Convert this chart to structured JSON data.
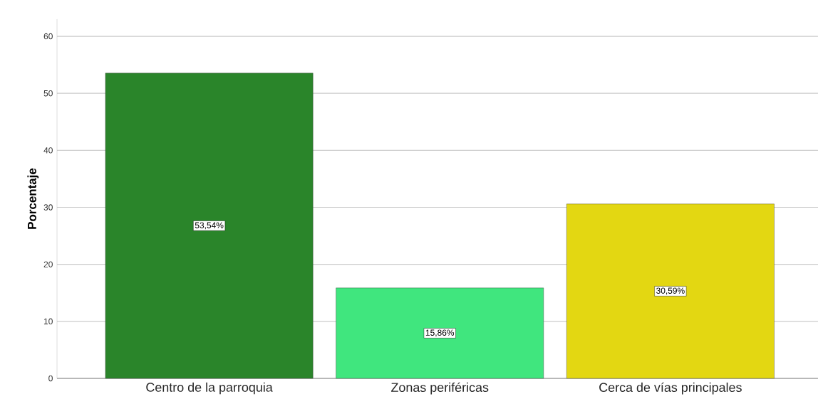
{
  "chart_data": {
    "type": "bar",
    "ylabel": "Porcentaje",
    "categories": [
      "Centro de la parroquia",
      "Zonas periféricas",
      "Cerca de vías principales"
    ],
    "values": [
      53.54,
      15.86,
      30.59
    ],
    "colors": [
      "#2a852a",
      "#40e67e",
      "#e3d712"
    ],
    "value_labels": [
      "53,54%",
      "15,86%",
      "30,59%"
    ],
    "ylim": [
      0,
      63
    ],
    "yticks": [
      0,
      10,
      20,
      30,
      40,
      50,
      60
    ],
    "grid": "y"
  }
}
